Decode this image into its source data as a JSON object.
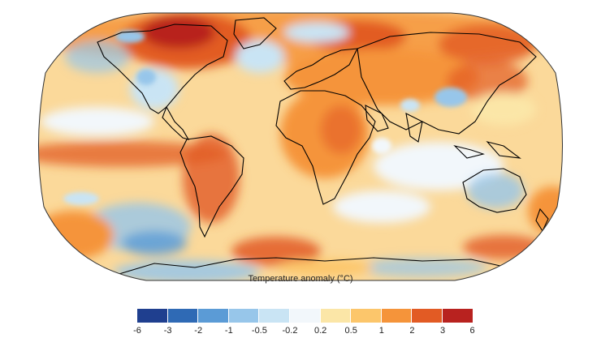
{
  "legend": {
    "title": "Temperature anomaly (°C)",
    "ticks": [
      "-6",
      "-3",
      "-2",
      "-1",
      "-0.5",
      "-0.2",
      "0.2",
      "0.5",
      "1",
      "2",
      "3",
      "6"
    ],
    "colors": [
      "#1f3f8f",
      "#2f6ab5",
      "#5b9bd6",
      "#97c6ea",
      "#c9e4f4",
      "#f2f7fb",
      "#fbe6a7",
      "#fcc66b",
      "#f5943a",
      "#e25b24",
      "#b8221f"
    ]
  },
  "map": {
    "ocean_base_color": "#fbd99a",
    "coastline_color": "#000000"
  }
}
